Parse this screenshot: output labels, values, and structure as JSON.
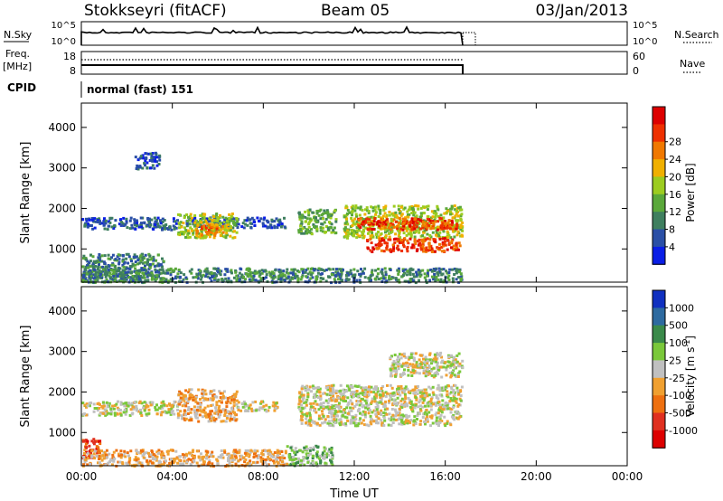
{
  "header": {
    "station": "Stokkseyri (fitACF)",
    "beam": "Beam 05",
    "date": "03/Jan/2013"
  },
  "noise_panel": {
    "left_label": "N.Sky",
    "left_ticks": [
      "10^5",
      "10^0"
    ],
    "right_ticks": [
      "10^5",
      "10^0"
    ],
    "right_label": "N.Search"
  },
  "freq_panel": {
    "label_line1": "Freq.",
    "label_line2": "[MHz]",
    "left_ticks": [
      "18",
      "8"
    ],
    "right_ticks": [
      "60",
      "0"
    ],
    "right_label": "Nave"
  },
  "cpid": {
    "label": "CPID",
    "mode": "normal (fast) 151"
  },
  "colors": {
    "power_scale": [
      "#0a1ee6",
      "#2a4fa6",
      "#3f7f5f",
      "#5aa83a",
      "#9ccc20",
      "#f0b000",
      "#f07800",
      "#ee3000",
      "#dd0000"
    ],
    "velocity_scale": [
      "#1030c0",
      "#2d6aa0",
      "#3a8a4a",
      "#7ac83a",
      "#c0c0c0",
      "#f0a030",
      "#ee7010",
      "#e03020",
      "#dd0000"
    ]
  },
  "chart_data": [
    {
      "type": "heatmap",
      "parameter": "Power",
      "ylabel": "Slant Range [km]",
      "yticks": [
        1000,
        2000,
        3000,
        4000
      ],
      "ylim": [
        180,
        4600
      ],
      "colorbar_label": "Power [dB]",
      "colorbar_ticks": [
        "4",
        "8",
        "12",
        "16",
        "20",
        "24",
        "28"
      ],
      "xlim": [
        0,
        24
      ],
      "blobs": [
        {
          "t0": 0.0,
          "t1": 4.2,
          "r0": 1500,
          "r1": 1800,
          "level": 1
        },
        {
          "t0": 0.0,
          "t1": 3.6,
          "r0": 200,
          "r1": 900,
          "level": 2
        },
        {
          "t0": 4.5,
          "t1": 9.0,
          "r0": 1550,
          "r1": 1800,
          "level": 1
        },
        {
          "t0": 4.2,
          "t1": 6.8,
          "r0": 1300,
          "r1": 1900,
          "level": 4
        },
        {
          "t0": 5.0,
          "t1": 6.2,
          "r0": 1350,
          "r1": 1650,
          "level": 6
        },
        {
          "t0": 9.5,
          "t1": 11.2,
          "r0": 1400,
          "r1": 2000,
          "level": 3
        },
        {
          "t0": 11.5,
          "t1": 16.7,
          "r0": 1300,
          "r1": 2100,
          "level": 4
        },
        {
          "t0": 12.0,
          "t1": 16.5,
          "r0": 1500,
          "r1": 1800,
          "level": 7
        },
        {
          "t0": 12.5,
          "t1": 16.6,
          "r0": 950,
          "r1": 1300,
          "level": 7
        },
        {
          "t0": 0.0,
          "t1": 16.7,
          "r0": 200,
          "r1": 550,
          "level": 2
        },
        {
          "t0": 2.3,
          "t1": 3.4,
          "r0": 3000,
          "r1": 3400,
          "level": 1
        }
      ]
    },
    {
      "type": "heatmap",
      "parameter": "Velocity",
      "ylabel": "Slant Range [km]",
      "yticks": [
        1000,
        2000,
        3000,
        4000
      ],
      "ylim": [
        180,
        4600
      ],
      "colorbar_label": "Velocity [m s^-1]",
      "colorbar_ticks": [
        "1000",
        "500",
        "100",
        "25",
        "-25",
        "-100",
        "-500",
        "-1000"
      ],
      "xtick_labels": [
        "00:00",
        "04:00",
        "08:00",
        "12:00",
        "16:00",
        "20:00",
        "00:00"
      ],
      "xlabel": "Time UT",
      "xlim": [
        0,
        24
      ],
      "blobs": [
        {
          "t0": 0.0,
          "t1": 4.2,
          "r0": 1450,
          "r1": 1800,
          "level": 4
        },
        {
          "t0": 0.0,
          "t1": 0.8,
          "r0": 400,
          "r1": 900,
          "level": 7
        },
        {
          "t0": 4.2,
          "t1": 6.8,
          "r0": 1300,
          "r1": 2100,
          "level": 5
        },
        {
          "t0": 6.8,
          "t1": 8.6,
          "r0": 1550,
          "r1": 1800,
          "level": 4
        },
        {
          "t0": 9.5,
          "t1": 16.7,
          "r0": 1200,
          "r1": 2200,
          "level": 4
        },
        {
          "t0": 0.0,
          "t1": 9.0,
          "r0": 200,
          "r1": 600,
          "level": 5
        },
        {
          "t0": 9.0,
          "t1": 11.0,
          "r0": 200,
          "r1": 700,
          "level": 3
        },
        {
          "t0": 13.5,
          "t1": 16.7,
          "r0": 2400,
          "r1": 3000,
          "level": 4
        }
      ]
    }
  ]
}
